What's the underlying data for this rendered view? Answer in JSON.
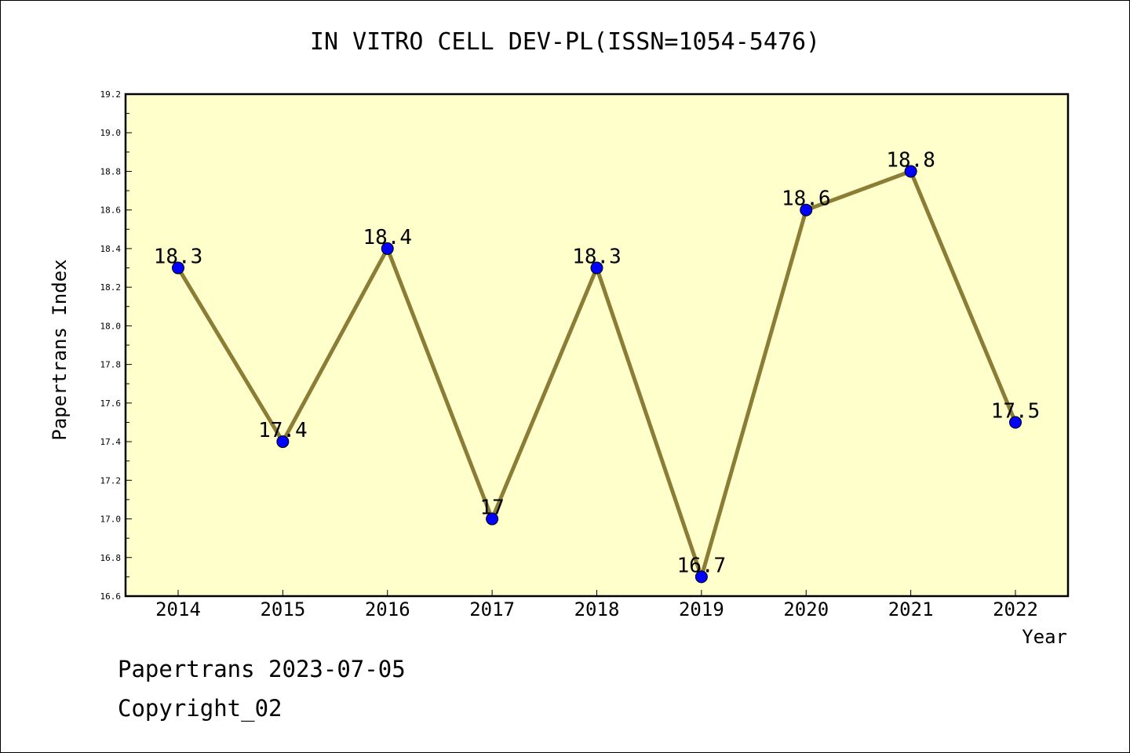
{
  "chart_data": {
    "type": "line",
    "title": "IN VITRO CELL DEV-PL(ISSN=1054-5476)",
    "xlabel": "Year",
    "ylabel": "Papertrans Index",
    "x": [
      "2014",
      "2015",
      "2016",
      "2017",
      "2018",
      "2019",
      "2020",
      "2021",
      "2022"
    ],
    "series": [
      {
        "values": [
          18.3,
          17.4,
          18.4,
          17.0,
          18.3,
          16.7,
          18.6,
          18.8,
          17.5
        ],
        "labels": [
          "18.3",
          "17.4",
          "18.4",
          "17",
          "18.3",
          "16.7",
          "18.6",
          "18.8",
          "17.5"
        ]
      }
    ],
    "ylim": [
      16.6,
      19.2
    ],
    "yticks": [
      "16.6",
      "16.8",
      "17.0",
      "17.2",
      "17.4",
      "17.6",
      "17.8",
      "18.0",
      "18.2",
      "18.4",
      "18.6",
      "18.8",
      "19.0",
      "19.2"
    ],
    "grid": false,
    "colors": {
      "plot_background": "#ffffcc",
      "line": "#8b7d35",
      "marker": "#0000ff"
    }
  },
  "footer": {
    "line1": "Papertrans 2023-07-05",
    "line2": "Copyright_02"
  }
}
